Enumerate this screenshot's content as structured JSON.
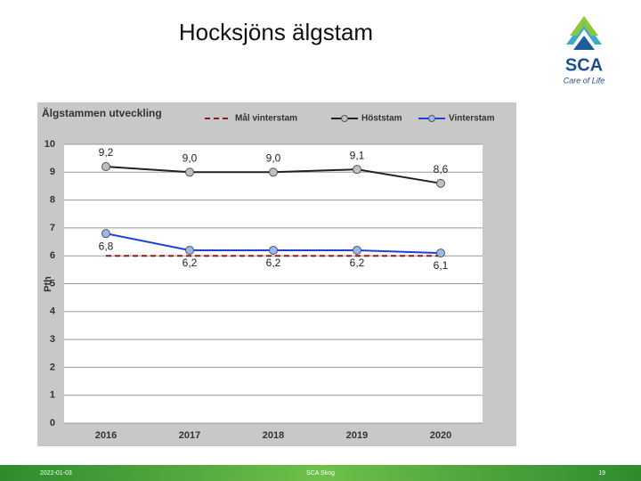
{
  "slide": {
    "title": "Hocksjöns älgstam"
  },
  "logo": {
    "name": "SCA",
    "tagline": "Care of Life"
  },
  "footer": {
    "date": "2022-01-03",
    "center": "SCA Skog",
    "page": "19"
  },
  "chart_data": {
    "type": "line",
    "title": "Älgstammen utveckling",
    "y_label": "Pth",
    "categories": [
      "2016",
      "2017",
      "2018",
      "2019",
      "2020"
    ],
    "series": [
      {
        "name": "Mål vinterstam",
        "color": "#8b1a1a",
        "line_style": "dashed",
        "values": [
          6,
          6,
          6,
          6,
          6
        ]
      },
      {
        "name": "Höststam",
        "color": "#222222",
        "marker_color": "#c0c0c0",
        "line_style": "solid",
        "values": [
          9.2,
          9.0,
          9.0,
          9.1,
          8.6
        ],
        "value_labels": [
          "9,2",
          "9,0",
          "9,0",
          "9,1",
          "8,6"
        ],
        "label_position": "above"
      },
      {
        "name": "Vinterstam",
        "color": "#1f3fd8",
        "marker_color": "#9ab8f0",
        "line_style": "solid",
        "values": [
          6.8,
          6.2,
          6.2,
          6.2,
          6.1
        ],
        "value_labels": [
          "6,8",
          "6,2",
          "6,2",
          "6,2",
          "6,1"
        ],
        "label_position": "below"
      }
    ],
    "ylim": [
      0,
      10
    ],
    "yticks": [
      0,
      1,
      2,
      3,
      4,
      5,
      6,
      7,
      8,
      9,
      10
    ],
    "grid": true
  }
}
